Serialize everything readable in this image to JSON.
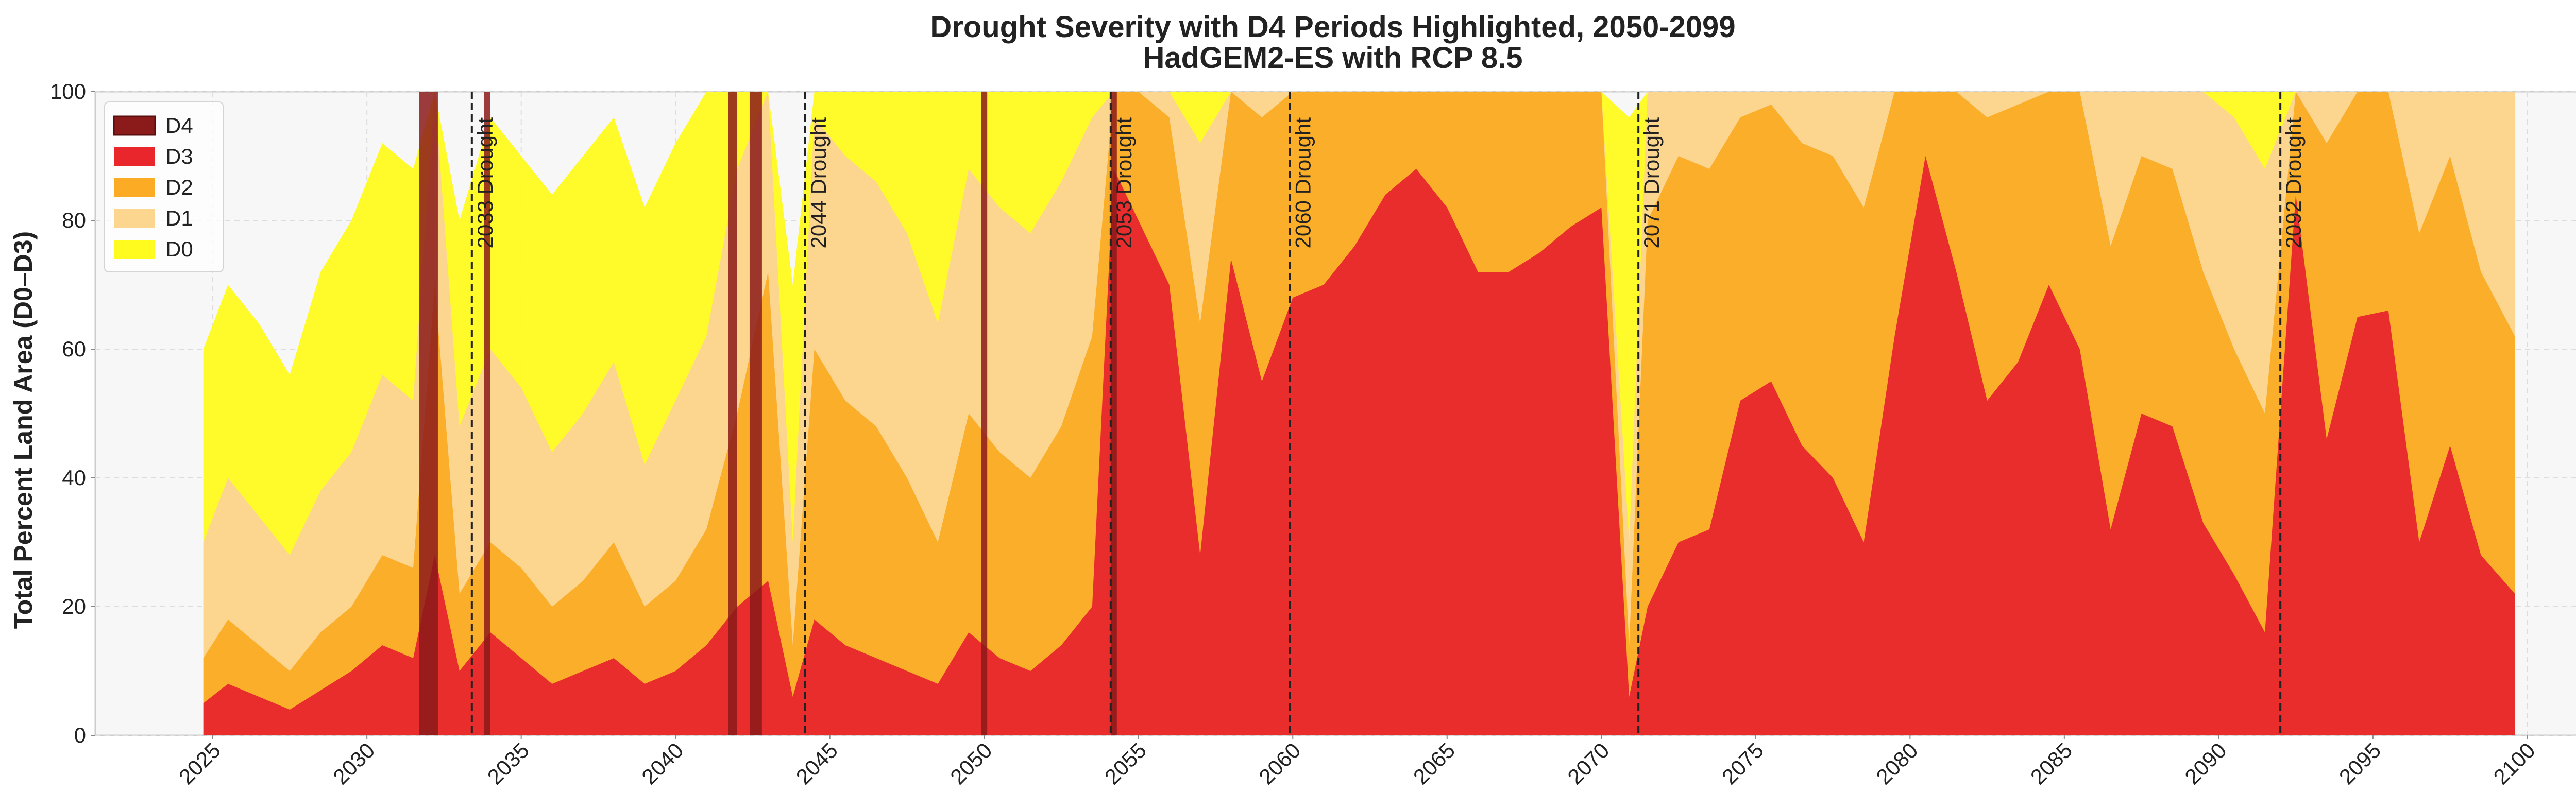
{
  "chart_data": {
    "type": "area",
    "title_line1": "Drought Severity with D4 Periods Highlighted, 2050-2099",
    "title_line2": "HadGEM2-ES with RCP 8.5",
    "xlabel": "",
    "ylabel": "Total Percent Land Area (D0–D3)",
    "xlim": [
      2021.2,
      2104.0
    ],
    "ylim": [
      0,
      100
    ],
    "x_ticks": [
      "2025",
      "2030",
      "2035",
      "2040",
      "2045",
      "2050",
      "2055",
      "2060",
      "2065",
      "2070",
      "2075",
      "2080",
      "2085",
      "2090",
      "2095",
      "2100"
    ],
    "y_ticks": [
      "0",
      "20",
      "40",
      "60",
      "80",
      "100"
    ],
    "grid": true,
    "legend_position": "top-left",
    "legend": [
      {
        "label": "D4",
        "color": "#8b1a1a"
      },
      {
        "label": "D3",
        "color": "#e8262c"
      },
      {
        "label": "D2",
        "color": "#fbac24"
      },
      {
        "label": "D1",
        "color": "#fcd58f"
      },
      {
        "label": "D0",
        "color": "#fffb1f"
      }
    ],
    "droughts": [
      {
        "year": 2033.4,
        "label": "2033 Drought"
      },
      {
        "year": 2044.2,
        "label": "2044 Drought"
      },
      {
        "year": 2054.1,
        "label": "2053 Drought"
      },
      {
        "year": 2059.9,
        "label": "2060 Drought"
      },
      {
        "year": 2071.2,
        "label": "2071 Drought"
      },
      {
        "year": 2092.0,
        "label": "2092 Drought"
      }
    ],
    "d4_periods": [
      [
        2031.7,
        2032.3
      ],
      [
        2033.8,
        2034.0
      ],
      [
        2041.7,
        2042.0
      ],
      [
        2042.4,
        2042.8
      ],
      [
        2049.9,
        2050.1
      ],
      [
        2054.1,
        2054.3
      ]
    ],
    "data_start": 2024.7,
    "data_end": 2099.6,
    "series": [
      {
        "name": "D3",
        "x": [
          2024.7,
          2025.5,
          2026.5,
          2027.5,
          2028.5,
          2029.5,
          2030.5,
          2031.5,
          2032.2,
          2033.0,
          2034.0,
          2035.0,
          2036.0,
          2037.0,
          2038.0,
          2039.0,
          2040.0,
          2041.0,
          2042.0,
          2043.0,
          2043.8,
          2044.5,
          2045.5,
          2046.5,
          2047.5,
          2048.5,
          2049.5,
          2050.5,
          2051.5,
          2052.5,
          2053.5,
          2054.2,
          2055.0,
          2056.0,
          2057.0,
          2058.0,
          2059.0,
          2060.0,
          2061.0,
          2062.0,
          2063.0,
          2064.0,
          2065.0,
          2066.0,
          2067.0,
          2068.0,
          2069.0,
          2070.0,
          2070.9,
          2071.5,
          2072.5,
          2073.5,
          2074.5,
          2075.5,
          2076.5,
          2077.5,
          2078.5,
          2079.5,
          2080.5,
          2081.5,
          2082.5,
          2083.5,
          2084.5,
          2085.5,
          2086.5,
          2087.5,
          2088.5,
          2089.5,
          2090.5,
          2091.5,
          2092.5,
          2093.5,
          2094.5,
          2095.5,
          2096.5,
          2097.5,
          2098.5,
          2099.6
        ],
        "values": [
          5,
          8,
          6,
          4,
          7,
          10,
          14,
          12,
          28,
          10,
          16,
          12,
          8,
          10,
          12,
          8,
          10,
          14,
          20,
          24,
          6,
          18,
          14,
          12,
          10,
          8,
          16,
          12,
          10,
          14,
          20,
          88,
          80,
          70,
          28,
          74,
          55,
          68,
          70,
          76,
          84,
          88,
          82,
          72,
          72,
          75,
          79,
          82,
          6,
          20,
          30,
          32,
          52,
          55,
          45,
          40,
          30,
          62,
          90,
          72,
          52,
          58,
          70,
          60,
          32,
          50,
          48,
          33,
          25,
          16,
          84,
          46,
          65,
          66,
          30,
          45,
          28,
          22
        ]
      },
      {
        "name": "D2",
        "x": [
          2024.7,
          2025.5,
          2026.5,
          2027.5,
          2028.5,
          2029.5,
          2030.5,
          2031.5,
          2032.2,
          2033.0,
          2034.0,
          2035.0,
          2036.0,
          2037.0,
          2038.0,
          2039.0,
          2040.0,
          2041.0,
          2042.0,
          2043.0,
          2043.8,
          2044.5,
          2045.5,
          2046.5,
          2047.5,
          2048.5,
          2049.5,
          2050.5,
          2051.5,
          2052.5,
          2053.5,
          2054.2,
          2055.0,
          2056.0,
          2057.0,
          2058.0,
          2059.0,
          2060.0,
          2061.0,
          2062.0,
          2063.0,
          2064.0,
          2065.0,
          2066.0,
          2067.0,
          2068.0,
          2069.0,
          2070.0,
          2070.9,
          2071.5,
          2072.5,
          2073.5,
          2074.5,
          2075.5,
          2076.5,
          2077.5,
          2078.5,
          2079.5,
          2080.5,
          2081.5,
          2082.5,
          2083.5,
          2084.5,
          2085.5,
          2086.5,
          2087.5,
          2088.5,
          2089.5,
          2090.5,
          2091.5,
          2092.5,
          2093.5,
          2094.5,
          2095.5,
          2096.5,
          2097.5,
          2098.5,
          2099.6
        ],
        "values": [
          12,
          18,
          14,
          10,
          16,
          20,
          28,
          26,
          70,
          22,
          30,
          26,
          20,
          24,
          30,
          20,
          24,
          32,
          50,
          72,
          14,
          60,
          52,
          48,
          40,
          30,
          50,
          44,
          40,
          48,
          62,
          100,
          100,
          96,
          64,
          100,
          96,
          100,
          100,
          100,
          100,
          100,
          100,
          100,
          100,
          100,
          100,
          100,
          14,
          80,
          90,
          88,
          96,
          98,
          92,
          90,
          82,
          100,
          100,
          100,
          96,
          98,
          100,
          100,
          76,
          90,
          88,
          72,
          60,
          50,
          100,
          92,
          100,
          100,
          78,
          90,
          72,
          62
        ]
      },
      {
        "name": "D1",
        "x": [
          2024.7,
          2025.5,
          2026.5,
          2027.5,
          2028.5,
          2029.5,
          2030.5,
          2031.5,
          2032.2,
          2033.0,
          2034.0,
          2035.0,
          2036.0,
          2037.0,
          2038.0,
          2039.0,
          2040.0,
          2041.0,
          2042.0,
          2043.0,
          2043.8,
          2044.5,
          2045.5,
          2046.5,
          2047.5,
          2048.5,
          2049.5,
          2050.5,
          2051.5,
          2052.5,
          2053.5,
          2054.2,
          2055.0,
          2056.0,
          2057.0,
          2058.0,
          2059.0,
          2060.0,
          2061.0,
          2062.0,
          2063.0,
          2064.0,
          2065.0,
          2066.0,
          2067.0,
          2068.0,
          2069.0,
          2070.0,
          2070.9,
          2071.5,
          2072.5,
          2073.5,
          2074.5,
          2075.5,
          2076.5,
          2077.5,
          2078.5,
          2079.5,
          2080.5,
          2081.5,
          2082.5,
          2083.5,
          2084.5,
          2085.5,
          2086.5,
          2087.5,
          2088.5,
          2089.5,
          2090.5,
          2091.5,
          2092.5,
          2093.5,
          2094.5,
          2095.5,
          2096.5,
          2097.5,
          2098.5,
          2099.6
        ],
        "values": [
          30,
          40,
          34,
          28,
          38,
          44,
          56,
          52,
          100,
          48,
          60,
          54,
          44,
          50,
          58,
          42,
          52,
          62,
          88,
          100,
          30,
          96,
          90,
          86,
          78,
          64,
          88,
          82,
          78,
          86,
          96,
          100,
          100,
          100,
          92,
          100,
          100,
          100,
          100,
          100,
          100,
          100,
          100,
          100,
          100,
          100,
          100,
          100,
          30,
          100,
          100,
          100,
          100,
          100,
          100,
          100,
          100,
          100,
          100,
          100,
          100,
          100,
          100,
          100,
          100,
          100,
          100,
          100,
          96,
          88,
          100,
          100,
          100,
          100,
          100,
          100,
          100,
          100
        ]
      },
      {
        "name": "D0",
        "x": [
          2024.7,
          2025.5,
          2026.5,
          2027.5,
          2028.5,
          2029.5,
          2030.5,
          2031.5,
          2032.2,
          2033.0,
          2034.0,
          2035.0,
          2036.0,
          2037.0,
          2038.0,
          2039.0,
          2040.0,
          2041.0,
          2042.0,
          2043.0,
          2043.8,
          2044.5,
          2045.5,
          2046.5,
          2047.5,
          2048.5,
          2049.5,
          2050.5,
          2051.5,
          2052.5,
          2053.5,
          2054.2,
          2055.0,
          2056.0,
          2057.0,
          2058.0,
          2059.0,
          2060.0,
          2061.0,
          2062.0,
          2063.0,
          2064.0,
          2065.0,
          2066.0,
          2067.0,
          2068.0,
          2069.0,
          2070.0,
          2070.9,
          2071.5,
          2072.5,
          2073.5,
          2074.5,
          2075.5,
          2076.5,
          2077.5,
          2078.5,
          2079.5,
          2080.5,
          2081.5,
          2082.5,
          2083.5,
          2084.5,
          2085.5,
          2086.5,
          2087.5,
          2088.5,
          2089.5,
          2090.5,
          2091.5,
          2092.5,
          2093.5,
          2094.5,
          2095.5,
          2096.5,
          2097.5,
          2098.5,
          2099.6
        ],
        "values": [
          60,
          70,
          64,
          56,
          72,
          80,
          92,
          88,
          100,
          80,
          96,
          90,
          84,
          90,
          96,
          82,
          92,
          100,
          100,
          100,
          70,
          100,
          100,
          100,
          100,
          100,
          100,
          100,
          100,
          100,
          100,
          100,
          100,
          100,
          100,
          100,
          100,
          100,
          100,
          100,
          100,
          100,
          100,
          100,
          100,
          100,
          100,
          100,
          96,
          100,
          100,
          100,
          100,
          100,
          100,
          100,
          100,
          100,
          100,
          100,
          100,
          100,
          100,
          100,
          100,
          100,
          100,
          100,
          100,
          100,
          100,
          100,
          100,
          100,
          100,
          100,
          100,
          100
        ]
      }
    ]
  }
}
